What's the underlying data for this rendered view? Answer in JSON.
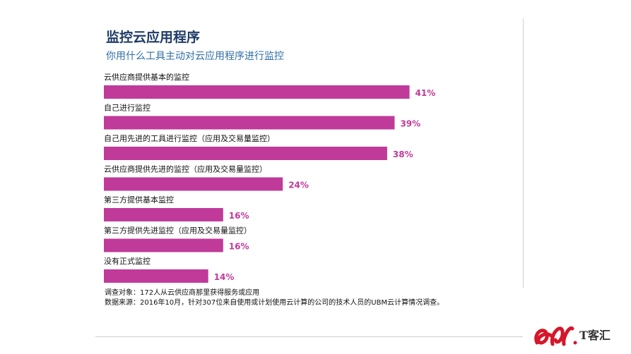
{
  "header": {
    "title": "监控云应用程序",
    "subtitle": "你用什么工具主动对云应用程序进行监控"
  },
  "chart_data": {
    "type": "bar",
    "orientation": "horizontal",
    "categories": [
      "云供应商提供基本的监控",
      "自己进行监控",
      "自己用先进的工具进行监控（应用及交易量监控）",
      "云供应商提供先进的监控（应用及交易量监控）",
      "第三方提供基本监控",
      "第三方提供先进监控（应用及交易量监控）",
      "没有正式监控"
    ],
    "values": [
      41,
      39,
      38,
      24,
      16,
      16,
      14
    ],
    "value_labels": [
      "41%",
      "39%",
      "38%",
      "24%",
      "16%",
      "16%",
      "14%"
    ],
    "unit": "%",
    "bar_color": "#c03a9a",
    "grid": false,
    "legend": "none"
  },
  "notes": {
    "line1": "调查对象：172人从云供应商那里获得服务或应用",
    "line2": "数据来源：2016年10月，针对307位来自使用或计划使用云计算的公司的技术人员的UBM云计算情况调查。"
  },
  "logo": {
    "text": "T客汇",
    "mark_color": "#d6162a"
  }
}
